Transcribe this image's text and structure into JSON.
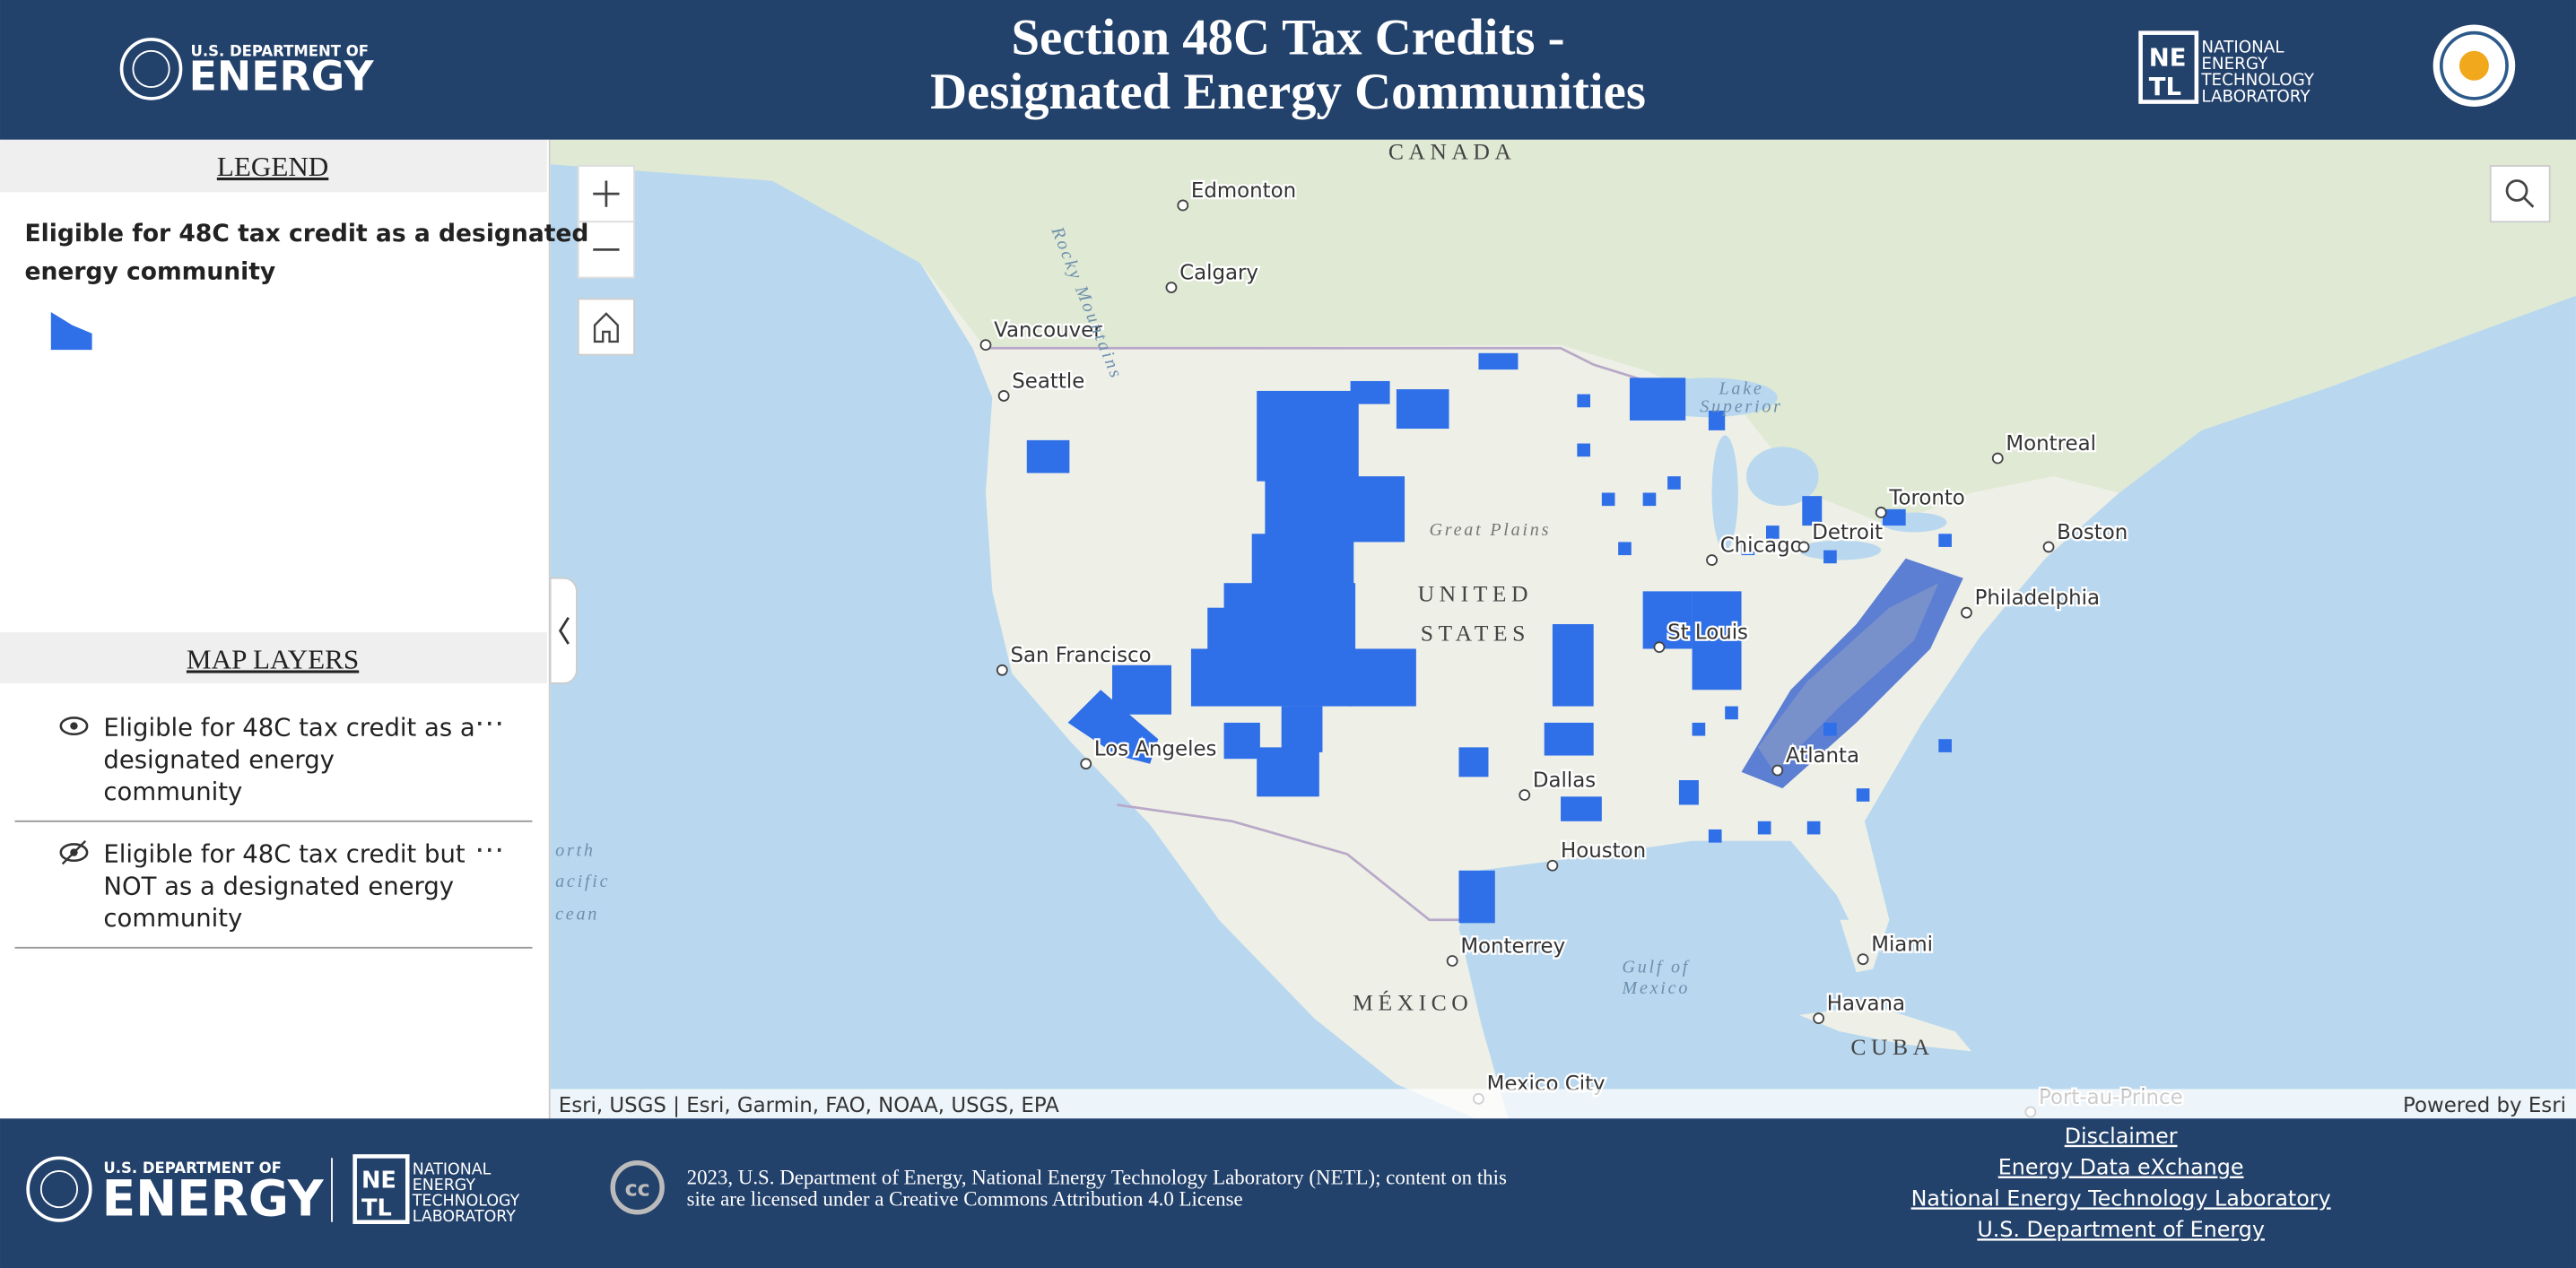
{
  "header": {
    "title": [
      "Section 48C Tax Credits -",
      "Designated Energy Communities"
    ],
    "doe_small": "U.S. DEPARTMENT OF",
    "doe_big": "ENERGY",
    "netl": [
      "NATIONAL",
      "ENERGY",
      "TECHNOLOGY",
      "LABORATORY"
    ]
  },
  "legend": {
    "heading": "LEGEND",
    "layer_title": [
      "Eligible for 48C tax credit as a designated",
      "energy community"
    ]
  },
  "map_layers": {
    "heading": "MAP LAYERS",
    "layers": [
      [
        "Eligible for 48C tax credit as a",
        "designated energy",
        "community"
      ],
      [
        "Eligible for 48C tax credit but",
        "NOT as a designated energy",
        "community"
      ]
    ]
  },
  "map": {
    "places": [
      "Edmonton",
      "Calgary",
      "Vancouver",
      "Seattle",
      "San Francisco",
      "Los Angeles",
      "Dallas",
      "Houston",
      "Monterrey",
      "Mexico City",
      "Chicago",
      "Detroit",
      "Toronto",
      "Montreal",
      "Boston",
      "Philadelphia",
      "Atlanta",
      "Miami",
      "Havana",
      "St Louis",
      "Port-au-Prince"
    ],
    "regions": [
      "CANADA",
      "UNITED",
      "STATES",
      "MÉXICO",
      "CUBA"
    ],
    "features": [
      "Rocky Mountains",
      "Great Plains",
      "Lake",
      "Superior",
      "Gulf of",
      "Mexico",
      "orth",
      "acific",
      "cean"
    ],
    "attribution": "Esri, USGS | Esri, Garmin, FAO, NOAA, USGS, EPA",
    "powered": "Powered by Esri"
  },
  "footer": {
    "copyright": [
      "2023, U.S. Department of Energy, National Energy Technology Laboratory (NETL); content on this",
      "site are licensed under a Creative Commons Attribution 4.0 License"
    ],
    "cc": "cc",
    "links": [
      "Disclaimer",
      "Energy Data eXchange",
      "National Energy Technology Laboratory",
      "U.S. Department of Energy"
    ]
  }
}
